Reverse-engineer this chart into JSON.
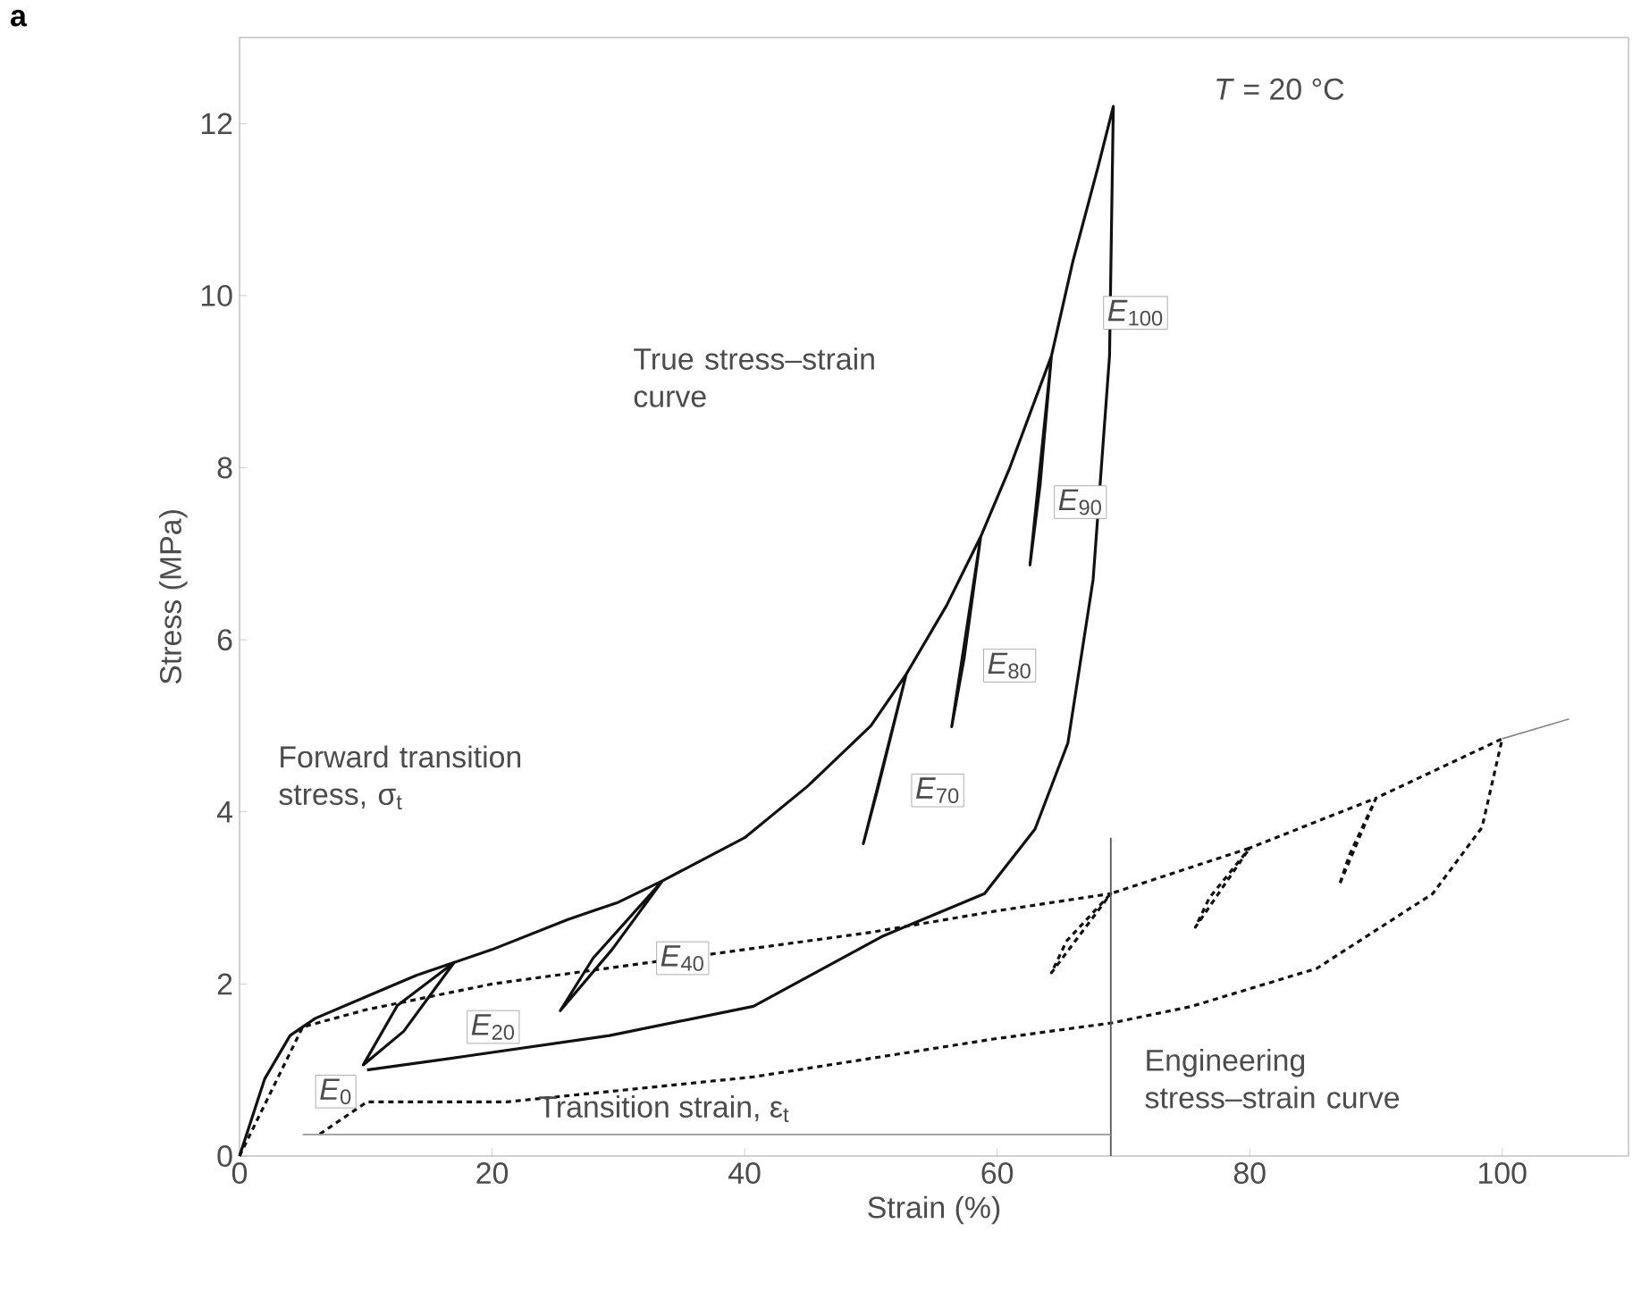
{
  "chart_data": {
    "type": "line",
    "title": "**a**",
    "xlabel": "Strain (%)",
    "ylabel": "Stress (MPa)",
    "xlim": [
      0,
      110
    ],
    "ylim": [
      0,
      13
    ],
    "xticks": [
      0,
      20,
      40,
      60,
      80,
      100
    ],
    "yticks": [
      0,
      2,
      4,
      6,
      8,
      10,
      12
    ],
    "grid": false,
    "series": [
      {
        "color": "#111111",
        "line_style": "solid",
        "x": [
          0,
          2,
          4,
          6,
          10,
          14,
          17,
          13,
          9.8,
          12.5,
          17,
          20,
          26,
          30,
          33.5,
          29.5,
          25.4,
          28,
          33.5,
          40,
          45,
          50,
          52.8,
          49.4,
          50.6,
          52.8,
          56,
          58.7,
          56.4,
          57.4,
          58.7,
          61,
          64.3,
          62.6,
          63.4,
          64.3,
          66,
          68,
          69.2,
          68.9,
          67.6,
          65.6,
          63,
          59,
          51,
          40.7,
          29.3,
          17.9,
          10.1
        ],
        "values": [
          0,
          0.9,
          1.4,
          1.6,
          1.85,
          2.1,
          2.25,
          1.45,
          1.06,
          1.75,
          2.25,
          2.4,
          2.75,
          2.95,
          3.2,
          2.4,
          1.69,
          2.3,
          3.2,
          3.7,
          4.3,
          5.0,
          5.6,
          3.63,
          4.3,
          5.6,
          6.4,
          7.2,
          4.99,
          5.8,
          7.2,
          8.0,
          9.3,
          6.87,
          7.8,
          9.3,
          10.4,
          11.5,
          12.2,
          9.3,
          6.7,
          4.8,
          3.8,
          3.05,
          2.56,
          1.74,
          1.4,
          1.16,
          1.0
        ]
      },
      {
        "color": "#111111",
        "line_style": "dashed",
        "x": [
          0,
          5,
          10,
          20,
          30,
          40,
          50,
          60,
          69,
          64.3,
          65.5,
          69,
          80,
          75.7,
          76.8,
          80,
          90,
          87.1,
          87.9,
          90,
          100,
          98.4,
          94.5,
          85.3,
          75.4,
          69.2,
          59.7,
          40.7,
          21.2,
          10.1,
          6.2
        ],
        "values": [
          0,
          1.5,
          1.7,
          2.0,
          2.2,
          2.4,
          2.6,
          2.85,
          3.05,
          2.13,
          2.5,
          3.05,
          3.58,
          2.66,
          3.0,
          3.58,
          4.16,
          3.15,
          3.5,
          4.16,
          4.85,
          3.82,
          3.05,
          2.18,
          1.74,
          1.55,
          1.36,
          0.92,
          0.63,
          0.63,
          0.24
        ]
      },
      {
        "color": "#888888",
        "line_style": "solid",
        "x": [
          100,
          105.3
        ],
        "values": [
          4.85,
          5.08
        ]
      },
      {
        "color": "#555555",
        "line_style": "solid",
        "x": [
          69,
          69
        ],
        "values": [
          0,
          3.7
        ]
      },
      {
        "color": "#999999",
        "line_style": "solid",
        "x": [
          5,
          69
        ],
        "values": [
          0.25,
          0.25
        ]
      }
    ],
    "annotations": [
      "*T* = 20 °C",
      "True stress–strain curve",
      "Forward transition stress, σ$_{t}$",
      "Transition strain, ε$_{t}$",
      "Engineering stress–strain curve",
      "*E*$_{0}$",
      "*E*$_{20}$",
      "*E*$_{40}$",
      "*E*$_{70}$",
      "*E*$_{80}$",
      "*E*$_{90}$",
      {
        "text": "*E*$_{100}$",
        "x": 68.4,
        "y": 9.8
      }
    ]
  }
}
